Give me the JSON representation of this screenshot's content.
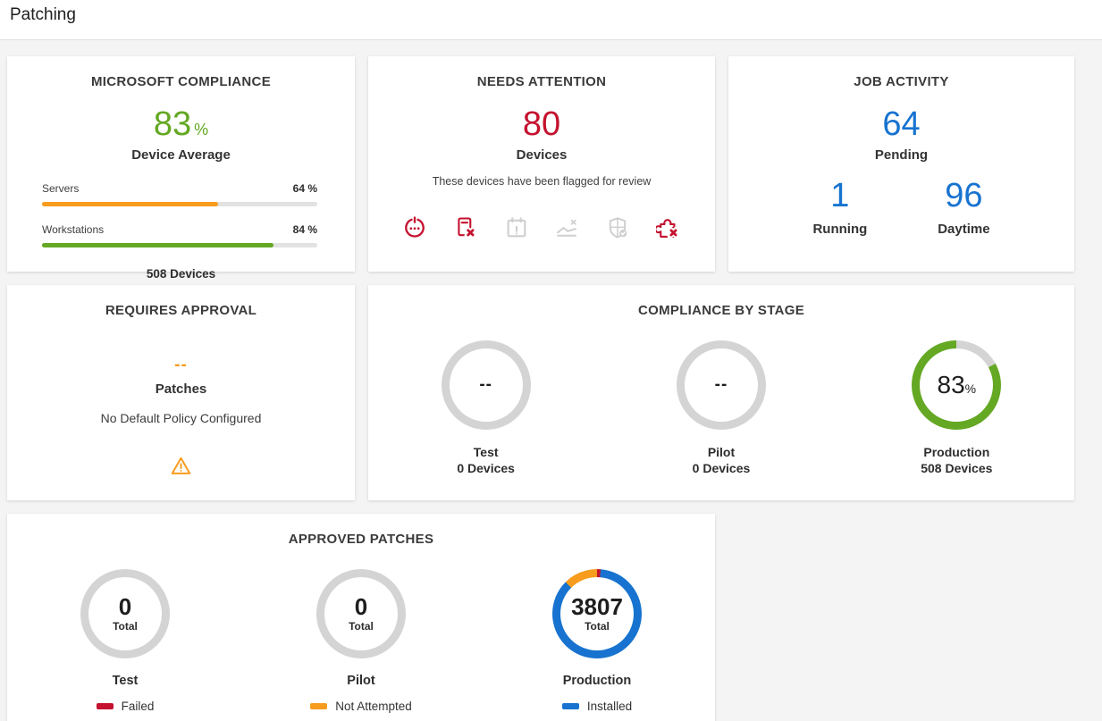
{
  "page": {
    "title": "Patching"
  },
  "colors": {
    "green": "#64a823",
    "orange": "#f79c1d",
    "red": "#c4122f",
    "blue": "#1773cf",
    "gray_ring": "#d4d4d4",
    "gray_icon": "#cfcfcf",
    "bar_track": "#e2e2e2"
  },
  "cards": {
    "microsoft_compliance": {
      "title": "MICROSOFT COMPLIANCE",
      "value": "83",
      "value_unit": "%",
      "value_label": "Device Average",
      "bars": [
        {
          "label": "Servers",
          "percent": 64,
          "percent_label": "64 %",
          "color": "#f79c1d"
        },
        {
          "label": "Workstations",
          "percent": 84,
          "percent_label": "84 %",
          "color": "#64a823"
        }
      ],
      "footer": "508 Devices"
    },
    "needs_attention": {
      "title": "NEEDS ATTENTION",
      "value": "80",
      "value_label": "Devices",
      "description": "These devices have been flagged for review",
      "icons": [
        {
          "name": "reboot-pending",
          "color": "#c4122f"
        },
        {
          "name": "patch-failed",
          "color": "#c4122f"
        },
        {
          "name": "schedule-missed",
          "color": "#cfcfcf"
        },
        {
          "name": "trend-declining",
          "color": "#cfcfcf"
        },
        {
          "name": "security-status",
          "color": "#cfcfcf"
        },
        {
          "name": "patch-missing",
          "color": "#c4122f"
        }
      ]
    },
    "job_activity": {
      "title": "JOB ACTIVITY",
      "primary": {
        "value": "64",
        "label": "Pending"
      },
      "secondary": [
        {
          "value": "1",
          "label": "Running"
        },
        {
          "value": "96",
          "label": "Daytime"
        }
      ]
    },
    "requires_approval": {
      "title": "REQUIRES APPROVAL",
      "value": "--",
      "value_label": "Patches",
      "message": "No Default Policy Configured"
    },
    "compliance_by_stage": {
      "title": "COMPLIANCE BY STAGE",
      "stages": [
        {
          "name": "Test",
          "devices": "0 Devices",
          "center_value": "--",
          "center_unit": "",
          "ring": {
            "segments": [
              {
                "color": "#d4d4d4",
                "pct": 100
              }
            ]
          }
        },
        {
          "name": "Pilot",
          "devices": "0 Devices",
          "center_value": "--",
          "center_unit": "",
          "ring": {
            "segments": [
              {
                "color": "#d4d4d4",
                "pct": 100
              }
            ]
          }
        },
        {
          "name": "Production",
          "devices": "508 Devices",
          "center_value": "83",
          "center_unit": "%",
          "ring": {
            "segments": [
              {
                "color": "#d4d4d4",
                "pct": 17
              },
              {
                "color": "#64a823",
                "pct": 83
              }
            ]
          }
        }
      ]
    },
    "approved_patches": {
      "title": "APPROVED PATCHES",
      "stages": [
        {
          "name": "Test",
          "total": "0",
          "total_label": "Total",
          "ring": {
            "segments": [
              {
                "color": "#d4d4d4",
                "pct": 100
              }
            ]
          },
          "legend": {
            "label": "Failed",
            "color": "#c4122f"
          }
        },
        {
          "name": "Pilot",
          "total": "0",
          "total_label": "Total",
          "ring": {
            "segments": [
              {
                "color": "#d4d4d4",
                "pct": 100
              }
            ]
          },
          "legend": {
            "label": "Not Attempted",
            "color": "#f79c1d"
          }
        },
        {
          "name": "Production",
          "total": "3807",
          "total_label": "Total",
          "ring": {
            "segments": [
              {
                "color": "#c4122f",
                "pct": 1.3
              },
              {
                "color": "#1773cf",
                "pct": 86.3
              },
              {
                "color": "#f79c1d",
                "pct": 12.4
              }
            ]
          },
          "legend": {
            "label": "Installed",
            "color": "#1773cf"
          }
        }
      ]
    }
  }
}
